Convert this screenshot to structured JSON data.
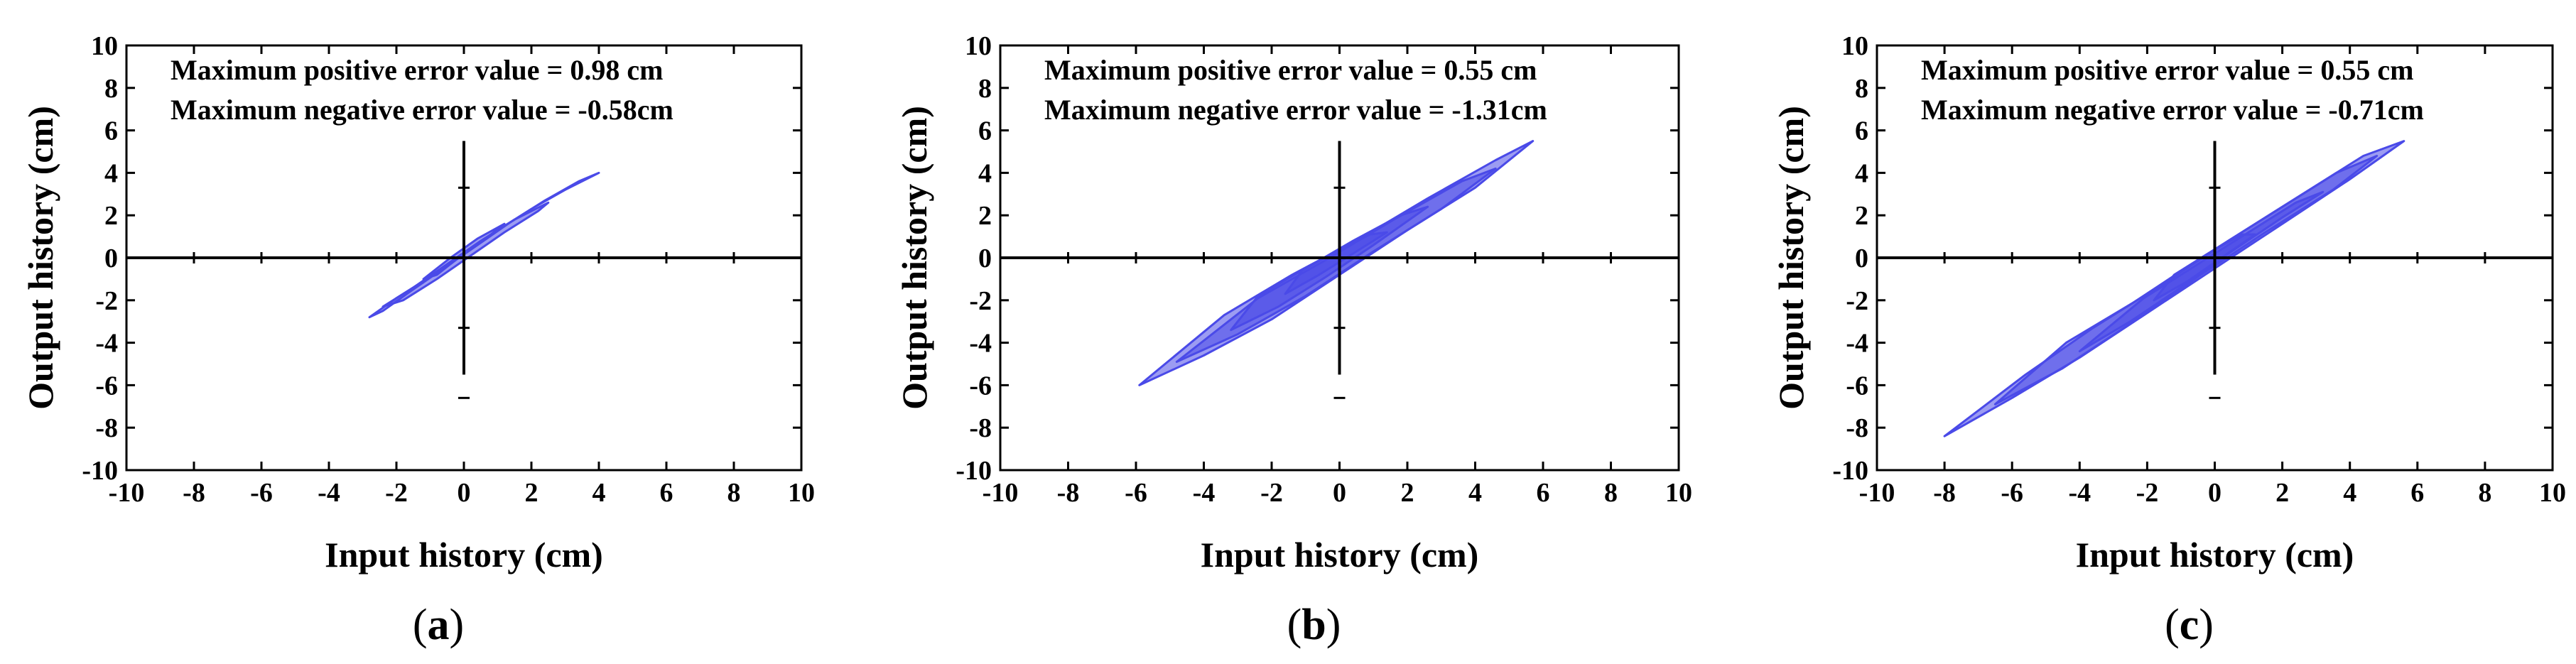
{
  "chart_data": [
    {
      "type": "line",
      "panel_label": "a",
      "xlabel": "Input history (cm)",
      "ylabel": "Output history (cm)",
      "xlim": [
        -10,
        10
      ],
      "ylim": [
        -10,
        10
      ],
      "xticks": [
        -10,
        -8,
        -6,
        -4,
        -2,
        0,
        2,
        4,
        6,
        8,
        10
      ],
      "yticks": [
        -10,
        -8,
        -6,
        -4,
        -2,
        0,
        2,
        4,
        6,
        8,
        10
      ],
      "annotations": [
        "Maximum positive error value = 0.98 cm",
        "Maximum negative error value = -0.58cm"
      ],
      "series_color": "#4a4ae8",
      "series": [
        {
          "loops": [
            {
              "x": [
                -2.8,
                -2.0,
                -1.0,
                0.0,
                1.0,
                2.0,
                3.0,
                4.0,
                3.4,
                2.4,
                1.4,
                0.4,
                -0.6,
                -1.6,
                -2.4,
                -2.8
              ],
              "y": [
                -2.8,
                -1.9,
                -0.9,
                0.2,
                1.3,
                2.3,
                3.2,
                4.0,
                3.6,
                2.7,
                1.7,
                0.6,
                -0.5,
                -1.6,
                -2.5,
                -2.8
              ]
            },
            {
              "x": [
                -2.4,
                -1.5,
                -0.5,
                0.5,
                1.5,
                2.5,
                2.2,
                1.2,
                0.2,
                -0.8,
                -1.8,
                -2.4
              ],
              "y": [
                -2.3,
                -1.4,
                -0.3,
                0.8,
                1.8,
                2.6,
                2.2,
                1.2,
                0.1,
                -1.0,
                -2.0,
                -2.3
              ]
            },
            {
              "x": [
                -1.2,
                -0.4,
                0.4,
                1.2,
                0.8,
                0.0,
                -0.8,
                -1.2
              ],
              "y": [
                -1.0,
                0.0,
                0.9,
                1.6,
                1.1,
                0.2,
                -0.8,
                -1.0
              ]
            }
          ]
        }
      ]
    },
    {
      "type": "line",
      "panel_label": "b",
      "xlabel": "Input history (cm)",
      "ylabel": "Output history (cm)",
      "xlim": [
        -10,
        10
      ],
      "ylim": [
        -10,
        10
      ],
      "xticks": [
        -10,
        -8,
        -6,
        -4,
        -2,
        0,
        2,
        4,
        6,
        8,
        10
      ],
      "yticks": [
        -10,
        -8,
        -6,
        -4,
        -2,
        0,
        2,
        4,
        6,
        8,
        10
      ],
      "annotations": [
        "Maximum positive error value = 0.55 cm",
        "Maximum negative error value = -1.31cm"
      ],
      "series_color": "#4a4ae8",
      "series": [
        {
          "loops": [
            {
              "x": [
                -5.9,
                -4.0,
                -2.0,
                0.0,
                2.0,
                4.0,
                5.7,
                4.6,
                2.6,
                0.6,
                -1.4,
                -3.4,
                -5.9
              ],
              "y": [
                -6.0,
                -4.6,
                -2.9,
                -0.8,
                1.3,
                3.3,
                5.5,
                4.6,
                2.8,
                0.9,
                -0.8,
                -2.7,
                -6.0
              ]
            },
            {
              "x": [
                -4.8,
                -3.0,
                -1.0,
                1.0,
                3.0,
                4.6,
                3.6,
                1.6,
                -0.4,
                -2.4,
                -4.8
              ],
              "y": [
                -4.9,
                -3.6,
                -1.8,
                0.3,
                2.3,
                4.2,
                3.6,
                1.8,
                -0.1,
                -1.9,
                -4.9
              ]
            },
            {
              "x": [
                -3.2,
                -1.8,
                -0.4,
                1.0,
                2.6,
                1.8,
                0.4,
                -1.0,
                -2.4,
                -3.2
              ],
              "y": [
                -3.4,
                -2.3,
                -0.9,
                0.6,
                2.4,
                2.0,
                0.8,
                -0.5,
                -1.8,
                -3.4
              ]
            },
            {
              "x": [
                -1.6,
                -0.6,
                0.4,
                1.4,
                0.9,
                -0.1,
                -1.1,
                -1.6
              ],
              "y": [
                -1.7,
                -0.8,
                0.2,
                1.2,
                1.1,
                0.3,
                -0.6,
                -1.7
              ]
            }
          ]
        }
      ]
    },
    {
      "type": "line",
      "panel_label": "c",
      "xlabel": "Input history (cm)",
      "ylabel": "Output history (cm)",
      "xlim": [
        -10,
        10
      ],
      "ylim": [
        -10,
        10
      ],
      "xticks": [
        -10,
        -8,
        -6,
        -4,
        -2,
        0,
        2,
        4,
        6,
        8,
        10
      ],
      "yticks": [
        -10,
        -8,
        -6,
        -4,
        -2,
        0,
        2,
        4,
        6,
        8,
        10
      ],
      "annotations": [
        "Maximum positive error value = 0.55 cm",
        "Maximum negative error value = -0.71cm"
      ],
      "series_color": "#4a4ae8",
      "series": [
        {
          "loops": [
            {
              "x": [
                -8.0,
                -6.0,
                -4.0,
                -2.0,
                0.0,
                2.0,
                4.0,
                5.6,
                4.4,
                2.4,
                0.4,
                -1.6,
                -3.6,
                -5.6,
                -8.0
              ],
              "y": [
                -8.4,
                -6.6,
                -4.7,
                -2.6,
                -0.5,
                1.6,
                3.7,
                5.5,
                4.8,
                2.8,
                0.8,
                -1.3,
                -3.3,
                -5.5,
                -8.4
              ]
            },
            {
              "x": [
                -6.5,
                -4.5,
                -2.5,
                -0.5,
                1.5,
                3.5,
                4.8,
                3.6,
                1.6,
                -0.4,
                -2.4,
                -4.4,
                -6.5
              ],
              "y": [
                -6.9,
                -5.2,
                -3.1,
                -0.9,
                1.2,
                3.2,
                4.8,
                4.0,
                2.0,
                0.0,
                -2.1,
                -4.0,
                -6.9
              ]
            },
            {
              "x": [
                -4.0,
                -2.5,
                -1.0,
                0.5,
                2.0,
                3.2,
                2.4,
                0.9,
                -0.6,
                -2.1,
                -4.0
              ],
              "y": [
                -4.4,
                -3.0,
                -1.4,
                0.3,
                1.9,
                3.1,
                2.6,
                1.1,
                -0.4,
                -1.9,
                -4.4
              ]
            },
            {
              "x": [
                -1.8,
                -0.8,
                0.2,
                1.2,
                0.8,
                -0.2,
                -1.2,
                -1.8
              ],
              "y": [
                -2.0,
                -1.1,
                0.0,
                1.1,
                1.1,
                0.2,
                -0.8,
                -2.0
              ]
            }
          ]
        }
      ]
    }
  ]
}
